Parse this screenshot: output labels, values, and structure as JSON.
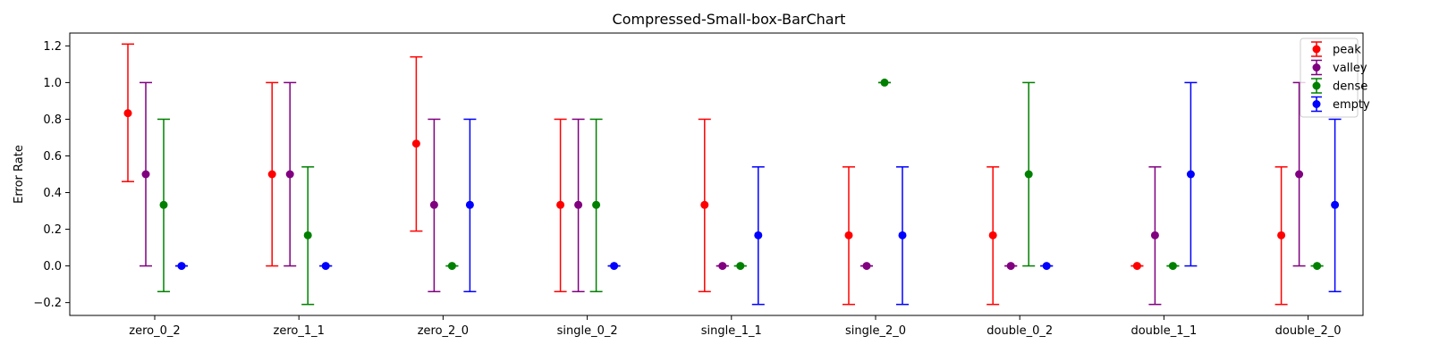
{
  "chart_data": {
    "type": "errorbar",
    "title": "Compressed-Small-box-BarChart",
    "xlabel": "",
    "ylabel": "Error Rate",
    "ylim": [
      -0.27,
      1.27
    ],
    "yticks": [
      -0.2,
      0.0,
      0.2,
      0.4,
      0.6,
      0.8,
      1.0,
      1.2
    ],
    "ytick_labels": [
      "−0.2",
      "0.0",
      "0.2",
      "0.4",
      "0.6",
      "0.8",
      "1.0",
      "1.2"
    ],
    "grid": false,
    "legend_position": "top-right",
    "categories": [
      "zero_0_2",
      "zero_1_1",
      "zero_2_0",
      "single_0_2",
      "single_1_1",
      "single_2_0",
      "double_0_2",
      "double_1_1",
      "double_2_0"
    ],
    "series": [
      {
        "name": "peak",
        "color": "#ff0000",
        "values": [
          0.833,
          0.5,
          0.667,
          0.333,
          0.333,
          0.167,
          0.167,
          0.0,
          0.167
        ],
        "lower": [
          0.46,
          0.0,
          0.19,
          -0.14,
          -0.14,
          -0.21,
          -0.21,
          0.0,
          -0.21
        ],
        "upper": [
          1.21,
          1.0,
          1.14,
          0.8,
          0.8,
          0.54,
          0.54,
          0.0,
          0.54
        ]
      },
      {
        "name": "valley",
        "color": "#800080",
        "values": [
          0.5,
          0.5,
          0.333,
          0.333,
          0.0,
          0.0,
          0.0,
          0.167,
          0.5
        ],
        "lower": [
          0.0,
          0.0,
          -0.14,
          -0.14,
          0.0,
          0.0,
          0.0,
          -0.21,
          0.0
        ],
        "upper": [
          1.0,
          1.0,
          0.8,
          0.8,
          0.0,
          0.0,
          0.0,
          0.54,
          1.0
        ]
      },
      {
        "name": "dense",
        "color": "#008000",
        "values": [
          0.333,
          0.167,
          0.0,
          0.333,
          0.0,
          1.0,
          0.5,
          0.0,
          0.0
        ],
        "lower": [
          -0.14,
          -0.21,
          0.0,
          -0.14,
          0.0,
          1.0,
          0.0,
          0.0,
          0.0
        ],
        "upper": [
          0.8,
          0.54,
          0.0,
          0.8,
          0.0,
          1.0,
          1.0,
          0.0,
          0.0
        ]
      },
      {
        "name": "empty",
        "color": "#0000ff",
        "values": [
          0.0,
          0.0,
          0.333,
          0.0,
          0.167,
          0.167,
          0.0,
          0.5,
          0.333
        ],
        "lower": [
          0.0,
          0.0,
          -0.14,
          0.0,
          -0.21,
          -0.21,
          0.0,
          0.0,
          -0.14
        ],
        "upper": [
          0.0,
          0.0,
          0.8,
          0.0,
          0.54,
          0.54,
          0.0,
          1.0,
          0.8
        ]
      }
    ]
  }
}
